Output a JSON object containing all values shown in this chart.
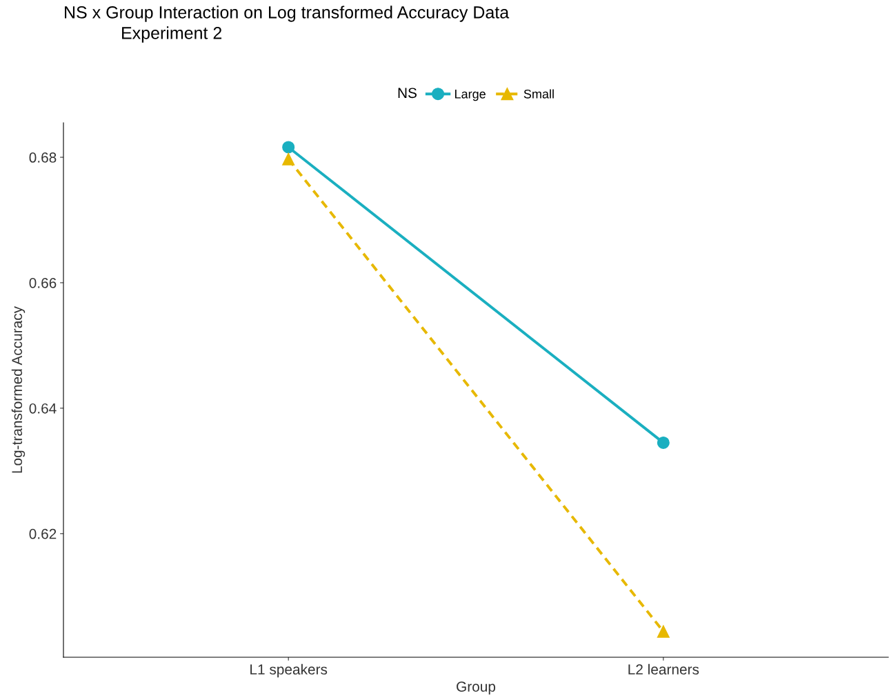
{
  "chart_data": {
    "type": "line",
    "title": "NS x Group Interaction on Log transformed Accuracy Data\nExperiment 2",
    "xlabel": "Group",
    "ylabel": "Log-transformed Accuracy",
    "legend_title": "NS",
    "legend": "top",
    "grid": false,
    "categories": [
      "L1 speakers",
      "L2 learners"
    ],
    "series": [
      {
        "name": "Large",
        "color": "#1aafc0",
        "values": [
          0.6816,
          0.6345
        ],
        "marker": "circle",
        "line_style": "solid"
      },
      {
        "name": "Small",
        "color": "#e7b800",
        "values": [
          0.6797,
          0.6044
        ],
        "marker": "triangle",
        "line_style": "dashed"
      }
    ],
    "ylim": [
      0.6003,
      0.6855
    ],
    "yticks": [
      0.62,
      0.64,
      0.66,
      0.68
    ]
  }
}
